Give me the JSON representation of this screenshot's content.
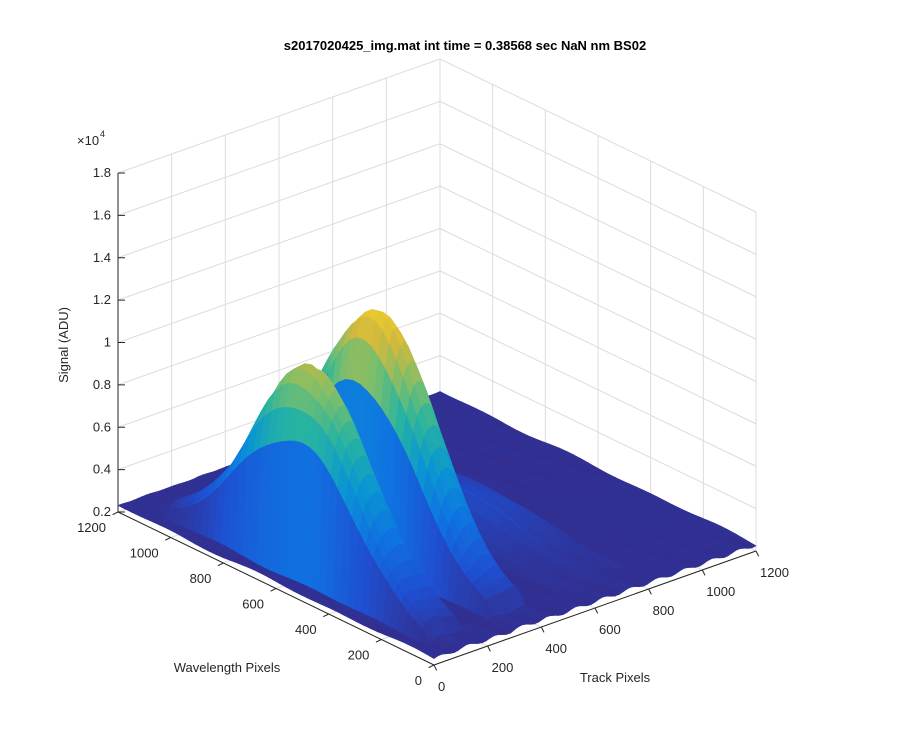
{
  "chart_data": {
    "type": "surface",
    "title": "s2017020425_img.mat int time = 0.38568 sec  NaN nm BS02",
    "xlabel": "Track Pixels",
    "ylabel": "Wavelength Pixels",
    "zlabel": "Signal (ADU)",
    "z_exponent_label": "×10",
    "z_exponent_power": "4",
    "x_ticks": [
      "0",
      "200",
      "400",
      "600",
      "800",
      "1000",
      "1200"
    ],
    "y_ticks": [
      "0",
      "200",
      "400",
      "600",
      "800",
      "1000",
      "1200"
    ],
    "z_ticks": [
      "0.2",
      "0.4",
      "0.6",
      "0.8",
      "1",
      "1.2",
      "1.4",
      "1.6",
      "1.8"
    ],
    "xlim": [
      0,
      1200
    ],
    "ylim": [
      0,
      1200
    ],
    "zlim": [
      2000,
      18000
    ],
    "colormap": "parula",
    "grid": true,
    "peaks": [
      {
        "track_center": 120,
        "track_width": 75,
        "peak_signal": 11800
      },
      {
        "track_center": 360,
        "track_width": 75,
        "peak_signal": 13800
      },
      {
        "track_center": 620,
        "track_width": 80,
        "peak_signal": 3200
      },
      {
        "track_center": 740,
        "track_width": 80,
        "peak_signal": 3400
      }
    ]
  }
}
